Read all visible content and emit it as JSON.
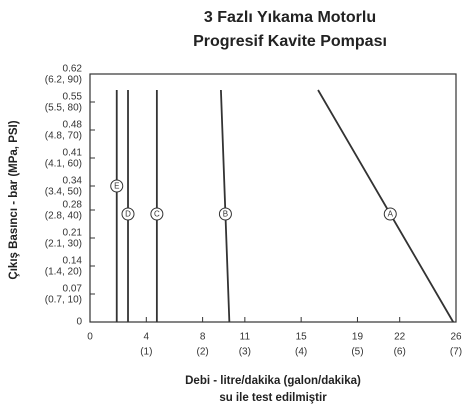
{
  "chart_data": {
    "type": "line",
    "title": [
      "3 Fazlı Yıkama Motorlu",
      "Progresif Kavite Pompası"
    ],
    "ylabel": "Çıkış Basıncı - bar (MPa, PSI)",
    "xlabel": [
      "Debi - litre/dakika (galon/dakika)",
      "su ile test edilmiştir"
    ],
    "xlim": [
      0,
      26
    ],
    "ylim": [
      0,
      0.62
    ],
    "xticks": [
      0,
      {
        "value": 4,
        "label": [
          "4",
          "(1)"
        ]
      },
      {
        "value": 8,
        "label": [
          "8",
          "(2)"
        ]
      },
      {
        "value": 11,
        "label": [
          "11",
          "(3)"
        ]
      },
      {
        "value": 15,
        "label": [
          "15",
          "(4)"
        ]
      },
      {
        "value": 19,
        "label": [
          "19",
          "(5)"
        ]
      },
      {
        "value": 22,
        "label": [
          "22",
          "(6)"
        ]
      },
      {
        "value": 26,
        "label": [
          "26",
          "(7)"
        ]
      }
    ],
    "yticks": [
      0,
      {
        "value": 0.07,
        "label": [
          "0.07",
          "(0.7, 10)"
        ]
      },
      {
        "value": 0.14,
        "label": [
          "0.14",
          "(1.4, 20)"
        ]
      },
      {
        "value": 0.21,
        "label": [
          "0.21",
          "(2.1, 30)"
        ]
      },
      {
        "value": 0.28,
        "label": [
          "0.28",
          "(2.8, 40)"
        ]
      },
      {
        "value": 0.34,
        "label": [
          "0.34",
          "(3.4, 50)"
        ]
      },
      {
        "value": 0.41,
        "label": [
          "0.41",
          "(4.1, 60)"
        ]
      },
      {
        "value": 0.48,
        "label": [
          "0.48",
          "(4.8, 70)"
        ]
      },
      {
        "value": 0.55,
        "label": [
          "0.55",
          "(5.5, 80)"
        ]
      },
      {
        "value": 0.62,
        "label": [
          "0.62",
          "(6.2, 90)"
        ]
      }
    ],
    "series": [
      {
        "name": "E",
        "color": "#333333",
        "x": [
          1.9,
          1.9,
          1.9
        ],
        "values": [
          0,
          0.34,
          0.58
        ]
      },
      {
        "name": "D",
        "color": "#333333",
        "x": [
          2.7,
          2.7,
          2.7
        ],
        "values": [
          0,
          0.27,
          0.58
        ]
      },
      {
        "name": "C",
        "color": "#333333",
        "x": [
          4.75,
          4.75,
          4.75
        ],
        "values": [
          0,
          0.27,
          0.58
        ]
      },
      {
        "name": "B",
        "color": "#333333",
        "x": [
          9.9,
          9.62,
          9.3
        ],
        "values": [
          0,
          0.27,
          0.58
        ]
      },
      {
        "name": "A",
        "color": "#333333",
        "x": [
          25.8,
          21.33,
          16.2
        ],
        "values": [
          0,
          0.27,
          0.58
        ]
      }
    ]
  }
}
